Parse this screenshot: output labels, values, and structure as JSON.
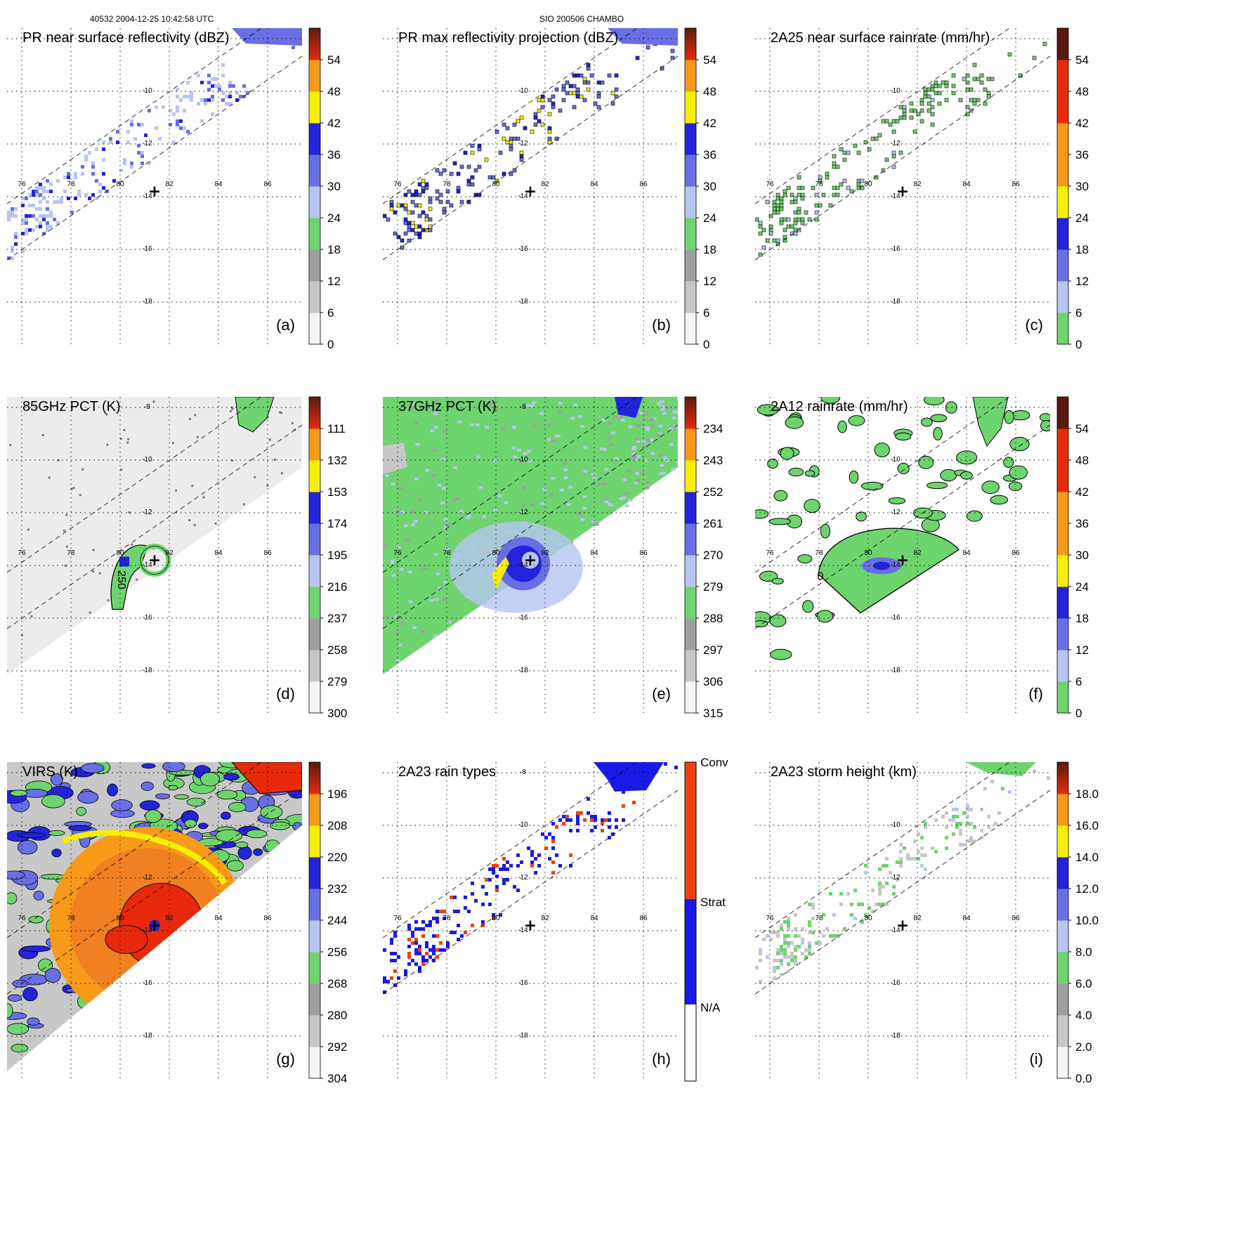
{
  "header": {
    "left": "40532 2004-12-25 10:42:58 UTC",
    "center": "SIO 200506 CHAMBO"
  },
  "axes": {
    "lon_ticks": [
      "76",
      "78",
      "80",
      "82",
      "84",
      "86"
    ],
    "lat_ticks": [
      "-8",
      "-10",
      "-12",
      "-14",
      "-16",
      "-18"
    ],
    "center_marker": "+"
  },
  "colors": {
    "gray_range": [
      "#ffffff",
      "#9a9a9a"
    ],
    "green": "#6ed46e",
    "blue_range": [
      "#c8d8f4",
      "#1a1ad8"
    ],
    "yellow": "#f6f000",
    "orange": "#f79a1a",
    "red": "#e82a0a",
    "dark_red": "#5a1a10"
  },
  "chart_data": [
    {
      "id": "a",
      "type": "heatmap",
      "title": "PR near surface reflectivity (dBZ)",
      "panel_label": "(a)",
      "colorbar_ticks": [
        "54",
        "48",
        "42",
        "36",
        "30",
        "24",
        "18",
        "12",
        "6",
        "0"
      ],
      "colorbar_range": [
        0,
        60
      ],
      "colorbar_scheme": "pr",
      "lat_ticks": [
        "-10",
        "-12",
        "-14",
        "-16",
        "-18"
      ]
    },
    {
      "id": "b",
      "type": "heatmap",
      "title": "PR max reflectivity projection (dBZ)",
      "panel_label": "(b)",
      "colorbar_ticks": [
        "54",
        "48",
        "42",
        "36",
        "30",
        "24",
        "18",
        "12",
        "6",
        "0"
      ],
      "colorbar_range": [
        0,
        60
      ],
      "colorbar_scheme": "pr",
      "lat_ticks": [
        "-10",
        "-12",
        "-14",
        "-16",
        "-18"
      ]
    },
    {
      "id": "c",
      "type": "heatmap",
      "title": "2A25 near surface rainrate (mm/hr)",
      "panel_label": "(c)",
      "colorbar_ticks": [
        "54",
        "48",
        "42",
        "36",
        "30",
        "24",
        "18",
        "12",
        "6",
        "0"
      ],
      "colorbar_range": [
        0,
        60
      ],
      "colorbar_scheme": "rain",
      "lat_ticks": [
        "-10",
        "-12",
        "-14",
        "-16",
        "-18"
      ]
    },
    {
      "id": "d",
      "type": "heatmap",
      "title": "85GHz PCT (K)",
      "panel_label": "(d)",
      "colorbar_ticks": [
        "111",
        "132",
        "153",
        "174",
        "195",
        "216",
        "237",
        "258",
        "279",
        "300"
      ],
      "colorbar_range": [
        90,
        300
      ],
      "colorbar_scheme": "pct",
      "contour_label": "250",
      "lat_ticks": [
        "-8",
        "-10",
        "-12",
        "-14",
        "-16",
        "-18"
      ]
    },
    {
      "id": "e",
      "type": "heatmap",
      "title": "37GHz PCT (K)",
      "panel_label": "(e)",
      "colorbar_ticks": [
        "234",
        "243",
        "252",
        "261",
        "270",
        "279",
        "288",
        "297",
        "306",
        "315"
      ],
      "colorbar_range": [
        225,
        315
      ],
      "colorbar_scheme": "pct",
      "lat_ticks": [
        "-8",
        "-10",
        "-12",
        "-14",
        "-16",
        "-18"
      ]
    },
    {
      "id": "f",
      "type": "heatmap",
      "title": "2A12 rainrate (mm/hr)",
      "panel_label": "(f)",
      "colorbar_ticks": [
        "54",
        "48",
        "42",
        "36",
        "30",
        "24",
        "18",
        "12",
        "6",
        "0"
      ],
      "colorbar_range": [
        0,
        60
      ],
      "colorbar_scheme": "rain",
      "contour_label": "0",
      "lat_ticks": [
        "-10",
        "-12",
        "-14",
        "-16",
        "-18"
      ]
    },
    {
      "id": "g",
      "type": "heatmap",
      "title": "VIRS (K)",
      "panel_label": "(g)",
      "colorbar_ticks": [
        "196",
        "208",
        "220",
        "232",
        "244",
        "256",
        "268",
        "280",
        "292",
        "304"
      ],
      "colorbar_range": [
        184,
        304
      ],
      "colorbar_scheme": "pct",
      "lat_ticks": [
        "-12",
        "-14",
        "-16",
        "-18"
      ]
    },
    {
      "id": "h",
      "type": "heatmap",
      "title": "2A23 rain types",
      "panel_label": "(h)",
      "colorbar_categories": [
        "Conv",
        "Strat",
        "N/A"
      ],
      "colorbar_scheme": "types",
      "lat_ticks": [
        "-8",
        "-10",
        "-12",
        "-14",
        "-16",
        "-18"
      ]
    },
    {
      "id": "i",
      "type": "heatmap",
      "title": "2A23 storm height (km)",
      "panel_label": "(i)",
      "colorbar_ticks": [
        "18.0",
        "16.0",
        "14.0",
        "12.0",
        "10.0",
        "8.0",
        "6.0",
        "4.0",
        "2.0",
        "0.0"
      ],
      "colorbar_range": [
        0,
        20
      ],
      "colorbar_scheme": "height",
      "lat_ticks": [
        "-10",
        "-12",
        "-14",
        "-16",
        "-18"
      ]
    }
  ]
}
